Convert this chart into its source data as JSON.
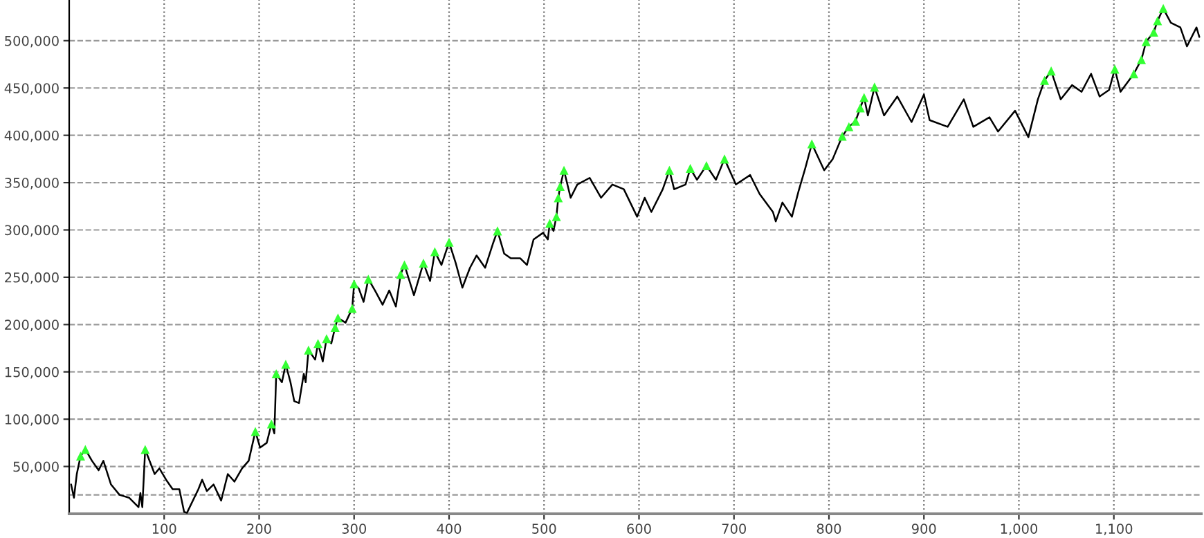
{
  "chart_data": {
    "type": "line",
    "x": [
      2,
      5,
      8,
      12,
      17,
      24,
      31,
      36,
      44,
      53,
      63,
      73,
      75,
      77,
      80,
      90,
      95,
      102,
      109,
      116,
      121,
      124,
      136,
      140,
      145,
      152,
      160,
      167,
      174,
      182,
      189,
      196,
      201,
      208,
      213,
      216,
      218,
      224,
      228,
      233,
      237,
      242,
      247,
      249,
      252,
      259,
      262,
      267,
      271,
      276,
      280,
      283,
      291,
      298,
      300,
      305,
      310,
      315,
      322,
      330,
      337,
      344,
      349,
      353,
      363,
      373,
      380,
      385,
      392,
      400,
      407,
      414,
      422,
      429,
      438,
      446,
      451,
      458,
      465,
      475,
      482,
      489,
      499,
      504,
      506,
      510,
      513,
      515,
      517,
      521,
      528,
      535,
      548,
      560,
      572,
      584,
      598,
      606,
      613,
      625,
      632,
      637,
      649,
      654,
      661,
      671,
      681,
      690,
      702,
      717,
      727,
      741,
      744,
      751,
      761,
      768,
      775,
      782,
      795,
      804,
      814,
      821,
      828,
      833,
      837,
      841,
      848,
      858,
      872,
      887,
      900,
      906,
      925,
      942,
      952,
      969,
      978,
      996,
      1010,
      1020,
      1027,
      1034,
      1044,
      1056,
      1066,
      1076,
      1085,
      1095,
      1101,
      1107,
      1121,
      1129,
      1134,
      1142,
      1146,
      1152,
      1160,
      1170,
      1177,
      1187,
      1190
    ],
    "series": [
      {
        "color": "#000000",
        "values": [
          31000,
          17000,
          42000,
          61000,
          68000,
          56000,
          46000,
          56000,
          31000,
          20000,
          17000,
          7000,
          22000,
          7000,
          68000,
          42000,
          48000,
          36000,
          26000,
          26000,
          2000,
          1000,
          26000,
          36000,
          24000,
          31000,
          14000,
          42000,
          34000,
          48000,
          56000,
          87000,
          70000,
          75000,
          95000,
          85000,
          148000,
          139000,
          158000,
          139000,
          119000,
          117000,
          148000,
          139000,
          173000,
          163000,
          180000,
          161000,
          185000,
          180000,
          197000,
          207000,
          202000,
          217000,
          243000,
          238000,
          224000,
          248000,
          236000,
          221000,
          236000,
          219000,
          253000,
          263000,
          231000,
          265000,
          246000,
          277000,
          263000,
          287000,
          265000,
          239000,
          260000,
          273000,
          260000,
          285000,
          299000,
          275000,
          270000,
          270000,
          263000,
          290000,
          297000,
          290000,
          307000,
          299000,
          314000,
          334000,
          346000,
          363000,
          334000,
          348000,
          355000,
          334000,
          348000,
          343000,
          314000,
          334000,
          319000,
          343000,
          363000,
          343000,
          348000,
          365000,
          353000,
          368000,
          353000,
          375000,
          348000,
          358000,
          338000,
          319000,
          309000,
          329000,
          314000,
          341000,
          365000,
          391000,
          363000,
          375000,
          399000,
          409000,
          415000,
          429000,
          440000,
          421000,
          451000,
          421000,
          441000,
          414000,
          443000,
          416000,
          409000,
          438000,
          409000,
          419000,
          404000,
          426000,
          398000,
          438000,
          458000,
          468000,
          438000,
          453000,
          446000,
          465000,
          441000,
          448000,
          470000,
          446000,
          465000,
          480000,
          499000,
          509000,
          521000,
          534000,
          519000,
          514000,
          494000,
          514000,
          504000
        ]
      },
      {
        "type": "scatter",
        "color": "#33ff33",
        "marker": "triangle",
        "x": [
          12,
          17,
          80,
          196,
          213,
          218,
          228,
          252,
          262,
          271,
          280,
          283,
          298,
          300,
          315,
          349,
          353,
          373,
          385,
          400,
          451,
          506,
          513,
          515,
          517,
          521,
          632,
          654,
          671,
          690,
          782,
          814,
          821,
          828,
          833,
          837,
          848,
          1027,
          1034,
          1101,
          1121,
          1129,
          1134,
          1142,
          1146,
          1152
        ],
        "values": [
          61000,
          68000,
          68000,
          87000,
          95000,
          148000,
          158000,
          173000,
          180000,
          185000,
          197000,
          207000,
          217000,
          243000,
          248000,
          253000,
          263000,
          265000,
          277000,
          287000,
          299000,
          307000,
          314000,
          334000,
          346000,
          363000,
          363000,
          365000,
          368000,
          375000,
          391000,
          399000,
          409000,
          415000,
          429000,
          440000,
          451000,
          458000,
          468000,
          470000,
          465000,
          480000,
          499000,
          509000,
          521000,
          534000
        ]
      }
    ],
    "xlim": [
      0,
      1192
    ],
    "ylim": [
      0,
      543000
    ],
    "xticks": [
      {
        "value": 100,
        "label": "100"
      },
      {
        "value": 200,
        "label": "200"
      },
      {
        "value": 300,
        "label": "300"
      },
      {
        "value": 400,
        "label": "400"
      },
      {
        "value": 500,
        "label": "500"
      },
      {
        "value": 600,
        "label": "600"
      },
      {
        "value": 700,
        "label": "700"
      },
      {
        "value": 800,
        "label": "800"
      },
      {
        "value": 900,
        "label": "900"
      },
      {
        "value": 1000,
        "label": "1,000"
      },
      {
        "value": 1100,
        "label": "1,100"
      }
    ],
    "yticks": [
      {
        "value": 50000,
        "label": "50,000"
      },
      {
        "value": 100000,
        "label": "100,000"
      },
      {
        "value": 150000,
        "label": "150,000"
      },
      {
        "value": 200000,
        "label": "200,000"
      },
      {
        "value": 250000,
        "label": "250,000"
      },
      {
        "value": 300000,
        "label": "300,000"
      },
      {
        "value": 350000,
        "label": "350,000"
      },
      {
        "value": 400000,
        "label": "400,000"
      },
      {
        "value": 450000,
        "label": "450,000"
      },
      {
        "value": 500000,
        "label": "500,000"
      }
    ],
    "ref_lines": [
      {
        "axis": "y",
        "value": 20000,
        "color": "#999999",
        "line_style": "dashed"
      }
    ],
    "grid": true,
    "line_style": "solid"
  }
}
